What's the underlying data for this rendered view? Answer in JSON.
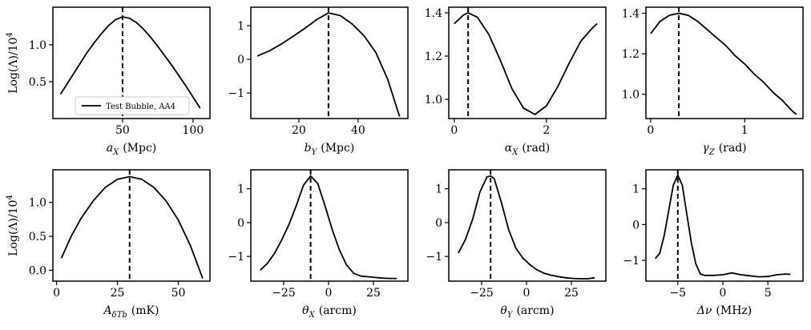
{
  "chart_data": [
    {
      "type": "line",
      "x": [
        6,
        10,
        15,
        20,
        25,
        30,
        35,
        40,
        45,
        50,
        55,
        60,
        65,
        70,
        75,
        80,
        85,
        90,
        95,
        100,
        105
      ],
      "series": [
        {
          "name": "Test Bubble, AA4",
          "color": "#000000",
          "values": [
            0.33,
            0.45,
            0.6,
            0.75,
            0.9,
            1.03,
            1.15,
            1.26,
            1.34,
            1.38,
            1.36,
            1.3,
            1.21,
            1.1,
            0.98,
            0.85,
            0.72,
            0.58,
            0.44,
            0.29,
            0.14
          ]
        }
      ],
      "xlim": [
        0.6,
        112
      ],
      "ylim": [
        0,
        1.51
      ],
      "xticks": [
        50,
        100
      ],
      "yticks": [
        0.5,
        {
          "value": 1.0,
          "label": "1.0"
        }
      ],
      "xlabel": {
        "symbol": "a",
        "sub": "X",
        "unit": "(Mpc)"
      },
      "ylabel": {
        "text": "Log(Λ)/10",
        "sup": "4"
      },
      "vline": 50,
      "legend": "lower center"
    },
    {
      "type": "line",
      "x": [
        6,
        10,
        14,
        18,
        22,
        26,
        30,
        34,
        38,
        42,
        46,
        50,
        54
      ],
      "series": [
        {
          "color": "#000000",
          "values": [
            0.1,
            0.25,
            0.45,
            0.68,
            0.92,
            1.18,
            1.38,
            1.3,
            1.05,
            0.7,
            0.2,
            -0.6,
            -1.7
          ]
        }
      ],
      "xlim": [
        3.8,
        56.8
      ],
      "ylim": [
        -1.76,
        1.55
      ],
      "xticks": [
        20,
        40
      ],
      "yticks": [
        {
          "value": -1,
          "label": "−1"
        },
        0,
        1
      ],
      "xlabel": {
        "symbol": "b",
        "sub": "Y",
        "unit": "(Mpc)"
      },
      "vline": 30
    },
    {
      "type": "line",
      "x": [
        0,
        0.2,
        0.3,
        0.5,
        0.75,
        1.0,
        1.25,
        1.5,
        1.75,
        2.0,
        2.25,
        2.5,
        2.75,
        3.0,
        3.1
      ],
      "series": [
        {
          "color": "#000000",
          "values": [
            1.35,
            1.39,
            1.4,
            1.38,
            1.3,
            1.18,
            1.05,
            0.96,
            0.93,
            0.97,
            1.06,
            1.17,
            1.27,
            1.33,
            1.35
          ]
        }
      ],
      "xlim": [
        -0.12,
        3.29
      ],
      "ylim": [
        0.911,
        1.426
      ],
      "xticks": [
        0,
        2
      ],
      "yticks": [
        {
          "value": 1.0,
          "label": "1.0"
        },
        1.2,
        1.4
      ],
      "xlabel": {
        "symbol": "α",
        "sub": "X",
        "unit": "(rad)"
      },
      "vline": 0.3
    },
    {
      "type": "line",
      "x": [
        0,
        0.1,
        0.2,
        0.3,
        0.4,
        0.5,
        0.6,
        0.7,
        0.8,
        0.9,
        1.0,
        1.1,
        1.2,
        1.3,
        1.4,
        1.5,
        1.55
      ],
      "series": [
        {
          "color": "#000000",
          "values": [
            1.3,
            1.36,
            1.39,
            1.4,
            1.39,
            1.36,
            1.32,
            1.28,
            1.24,
            1.19,
            1.15,
            1.1,
            1.06,
            1.01,
            0.97,
            0.92,
            0.9
          ]
        }
      ],
      "xlim": [
        -0.05,
        1.62
      ],
      "ylim": [
        0.88,
        1.43
      ],
      "xticks": [
        0,
        1
      ],
      "yticks": [
        {
          "value": 1.0,
          "label": "1.0"
        },
        1.2,
        1.4
      ],
      "xlabel": {
        "symbol": "γ",
        "sub": "Z",
        "unit": "(rad)"
      },
      "vline": 0.3
    },
    {
      "type": "line",
      "x": [
        2,
        6,
        10,
        15,
        20,
        25,
        30,
        35,
        40,
        45,
        50,
        55,
        60
      ],
      "series": [
        {
          "color": "#000000",
          "values": [
            0.18,
            0.5,
            0.76,
            1.02,
            1.22,
            1.34,
            1.38,
            1.34,
            1.22,
            1.02,
            0.74,
            0.36,
            -0.12
          ]
        }
      ],
      "xlim": [
        -1.5,
        63
      ],
      "ylim": [
        -0.16,
        1.48
      ],
      "xticks": [
        0,
        25,
        50
      ],
      "yticks": [
        {
          "value": 0.0,
          "label": "0.0"
        },
        0.5,
        {
          "value": 1.0,
          "label": "1.0"
        }
      ],
      "xlabel": {
        "symbol": "A",
        "sub": "δTb",
        "unit": "(mK)"
      },
      "ylabel": {
        "text": "Log(Λ)/10",
        "sup": "4"
      },
      "vline": 30
    },
    {
      "type": "line",
      "x": [
        -38,
        -34,
        -30,
        -26,
        -22,
        -18,
        -14,
        -10,
        -6,
        -2,
        2,
        6,
        10,
        14,
        18,
        22,
        26,
        30,
        34,
        38
      ],
      "series": [
        {
          "color": "#000000",
          "values": [
            -1.4,
            -1.2,
            -0.9,
            -0.5,
            -0.05,
            0.5,
            1.1,
            1.38,
            1.15,
            0.5,
            -0.2,
            -0.8,
            -1.25,
            -1.5,
            -1.58,
            -1.6,
            -1.62,
            -1.64,
            -1.65,
            -1.65
          ]
        }
      ],
      "xlim": [
        -43.3,
        44.2
      ],
      "ylim": [
        -1.73,
        1.56
      ],
      "xticks": [
        {
          "value": -25,
          "label": "−25"
        },
        0,
        25
      ],
      "yticks": [
        {
          "value": -1,
          "label": "−1"
        },
        0,
        1
      ],
      "xlabel": {
        "symbol": "θ",
        "sub": "X",
        "unit": "(arcm)"
      },
      "vline": -10
    },
    {
      "type": "line",
      "x": [
        -38,
        -34,
        -30,
        -26,
        -22,
        -20,
        -18,
        -14,
        -10,
        -6,
        -2,
        2,
        6,
        10,
        14,
        18,
        22,
        26,
        30,
        34,
        38
      ],
      "series": [
        {
          "color": "#000000",
          "values": [
            -0.9,
            -0.5,
            0.1,
            0.9,
            1.35,
            1.38,
            1.3,
            0.6,
            -0.2,
            -0.75,
            -1.05,
            -1.25,
            -1.4,
            -1.5,
            -1.56,
            -1.6,
            -1.63,
            -1.65,
            -1.66,
            -1.66,
            -1.63
          ]
        }
      ],
      "xlim": [
        -43.3,
        44.2
      ],
      "ylim": [
        -1.73,
        1.56
      ],
      "xticks": [
        {
          "value": -25,
          "label": "−25"
        },
        0,
        25
      ],
      "yticks": [
        {
          "value": -1,
          "label": "−1"
        },
        0,
        1
      ],
      "xlabel": {
        "symbol": "θ",
        "sub": "Y",
        "unit": "(arcm)"
      },
      "vline": -20
    },
    {
      "type": "line",
      "x": [
        -7.5,
        -7,
        -6.5,
        -6,
        -5.5,
        -5,
        -4.5,
        -4,
        -3.5,
        -3,
        -2.5,
        -2,
        -1,
        0,
        1,
        2,
        3,
        4,
        5,
        6,
        7,
        7.5
      ],
      "series": [
        {
          "color": "#000000",
          "values": [
            -0.95,
            -0.8,
            -0.3,
            0.4,
            1.1,
            1.38,
            1.1,
            0.3,
            -0.5,
            -1.1,
            -1.38,
            -1.42,
            -1.42,
            -1.4,
            -1.35,
            -1.4,
            -1.43,
            -1.46,
            -1.45,
            -1.4,
            -1.38,
            -1.39
          ]
        }
      ],
      "xlim": [
        -8.54,
        8.9
      ],
      "ylim": [
        -1.58,
        1.53
      ],
      "xticks": [
        {
          "value": -5,
          "label": "−5"
        },
        0,
        5
      ],
      "yticks": [
        {
          "value": -1,
          "label": "−1"
        },
        0,
        1
      ],
      "xlabel": {
        "symbol": "Δν",
        "unit": "(MHz)"
      },
      "vline": -5
    }
  ]
}
